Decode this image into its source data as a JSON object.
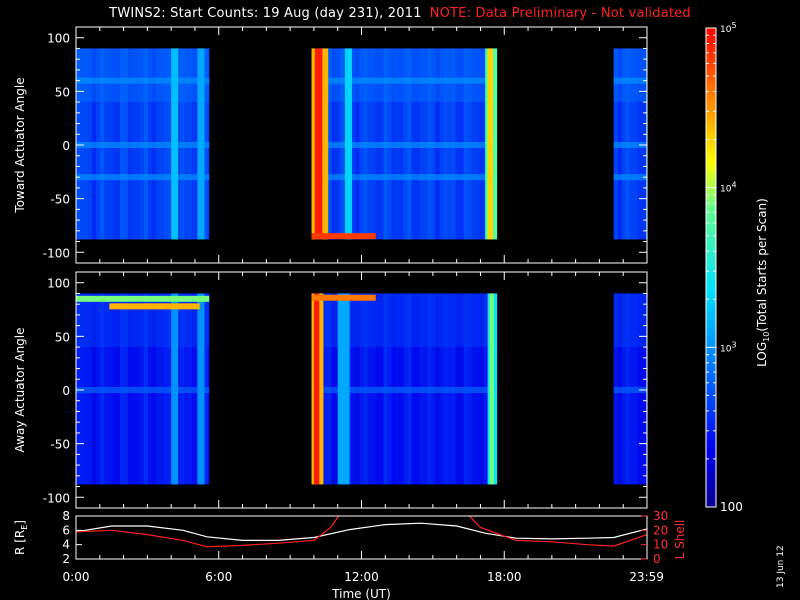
{
  "header": {
    "title": "TWINS2: Start Counts: 19 Aug (day 231), 2011",
    "note": "NOTE: Data Preliminary - Not validated"
  },
  "stamp": "13 Jun 12",
  "colors": {
    "background": "#000000",
    "axes": "#ffffff",
    "note": "#ff2020",
    "r_line": "#ffffff",
    "l_line": "#ff2020"
  },
  "chart_data": [
    {
      "type": "heatmap",
      "name": "toward-panel",
      "ylabel": "Toward Actuator Angle",
      "ylim": [
        -110,
        110
      ],
      "yticks": [
        100,
        50,
        0,
        -50,
        -100
      ],
      "y_extent": [
        -88,
        90
      ],
      "xlim_hours": [
        0,
        24
      ],
      "data_intervals_hours": [
        [
          0,
          5.6
        ],
        [
          9.9,
          17.7
        ],
        [
          22.6,
          24
        ]
      ],
      "angle_bands": [
        60,
        0,
        -30
      ],
      "hot_columns": [
        {
          "start": 9.9,
          "end": 10.6,
          "log_counts": 4.9
        },
        {
          "start": 17.2,
          "end": 17.7,
          "log_counts": 4.3
        }
      ],
      "hot_rows": [
        {
          "angle": -85,
          "start": 9.9,
          "end": 12.6,
          "log_counts": 4.8
        }
      ],
      "cool_columns": [
        {
          "start": 4.0,
          "end": 4.3,
          "log_counts": 3.2
        },
        {
          "start": 5.1,
          "end": 5.4,
          "log_counts": 3.1
        },
        {
          "start": 11.3,
          "end": 11.6,
          "log_counts": 3.3
        }
      ],
      "base_log_counts": 2.65
    },
    {
      "type": "heatmap",
      "name": "away-panel",
      "ylabel": "Away Actuator Angle",
      "ylim": [
        -110,
        110
      ],
      "yticks": [
        100,
        50,
        0,
        -50,
        -100
      ],
      "y_extent": [
        -88,
        90
      ],
      "xlim_hours": [
        0,
        24
      ],
      "data_intervals_hours": [
        [
          0,
          5.6
        ],
        [
          9.9,
          17.7
        ],
        [
          22.6,
          24
        ]
      ],
      "angle_bands": [
        0
      ],
      "hot_columns": [
        {
          "start": 9.9,
          "end": 10.4,
          "log_counts": 4.9
        },
        {
          "start": 17.3,
          "end": 17.7,
          "log_counts": 3.9
        }
      ],
      "hot_rows": [
        {
          "angle": 85,
          "start": 0,
          "end": 5.6,
          "log_counts": 3.9
        },
        {
          "angle": 78,
          "start": 1.4,
          "end": 5.2,
          "log_counts": 4.4
        },
        {
          "angle": 86,
          "start": 9.9,
          "end": 12.6,
          "log_counts": 4.6
        }
      ],
      "cool_columns": [
        {
          "start": 4.0,
          "end": 4.3,
          "log_counts": 3.0
        },
        {
          "start": 5.1,
          "end": 5.4,
          "log_counts": 3.0
        },
        {
          "start": 11.0,
          "end": 11.5,
          "log_counts": 3.1
        }
      ],
      "base_log_counts": 2.45
    },
    {
      "type": "line",
      "name": "ephemeris-panel",
      "xlabel": "Time (UT)",
      "xticks": [
        "0:00",
        "6:00",
        "12:00",
        "18:00",
        "23:59"
      ],
      "xtick_hours": [
        0,
        6,
        12,
        18,
        23.983
      ],
      "ylabel_left": "R [R",
      "ylabel_left_sub": "E",
      "ylabel_left_end": "]",
      "ylim_left": [
        2,
        8
      ],
      "yticks_left": [
        8,
        6,
        4,
        2
      ],
      "ylabel_right": "L Shell",
      "ylim_right": [
        0,
        30
      ],
      "yticks_right": [
        30,
        20,
        10,
        0
      ],
      "series": [
        {
          "axis": "left",
          "color": "#ffffff",
          "x": [
            0,
            1.5,
            3,
            4.5,
            5.5,
            7,
            8.5,
            10,
            11.5,
            13,
            14.5,
            16,
            17.2,
            18.5,
            20,
            21.5,
            22.6,
            24
          ],
          "y": [
            5.8,
            6.6,
            6.6,
            6.0,
            5.1,
            4.6,
            4.6,
            5.0,
            6.1,
            6.8,
            7.0,
            6.6,
            5.6,
            4.9,
            4.8,
            4.9,
            5.0,
            6.2
          ]
        },
        {
          "axis": "right",
          "color": "#ff2020",
          "x": [
            0,
            1.5,
            3,
            4.5,
            5.5,
            7,
            8.5,
            10,
            10.7,
            11.2,
            16.3,
            17.0,
            18.5,
            20,
            21.5,
            22.6,
            24
          ],
          "y": [
            19,
            20,
            17,
            13,
            8.5,
            9.5,
            11,
            13,
            22,
            34,
            34,
            22,
            13,
            12,
            10,
            9,
            17
          ]
        }
      ]
    }
  ],
  "colorbar": {
    "label_prefix": "LOG",
    "label_sub": "10",
    "label_suffix": "(Total Starts per Scan)",
    "range_log": [
      2,
      5
    ],
    "ticks": [
      {
        "log": 5,
        "base": "10",
        "exp": "5"
      },
      {
        "log": 4,
        "base": "10",
        "exp": "4"
      },
      {
        "log": 3,
        "base": "10",
        "exp": "3"
      },
      {
        "log": 2,
        "text": "100"
      }
    ]
  }
}
